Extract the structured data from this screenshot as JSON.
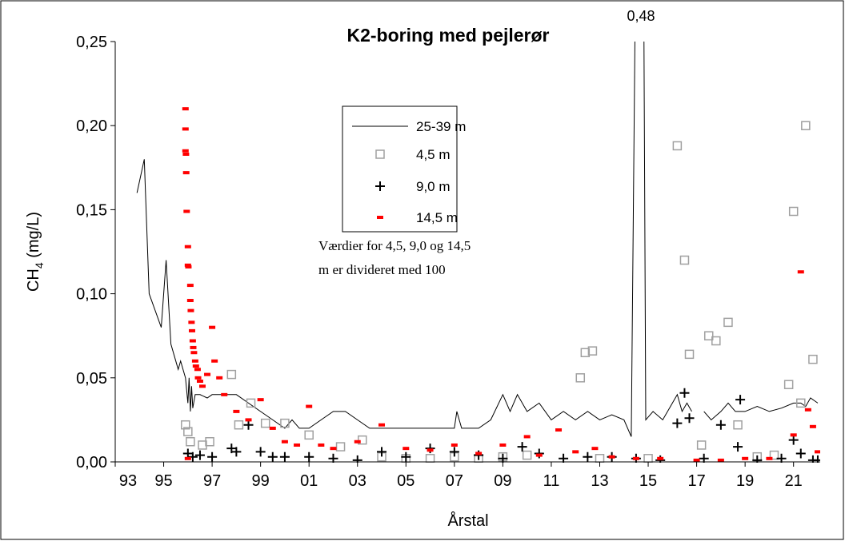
{
  "chart_data": {
    "type": "line-scatter",
    "title": "K2-boring med pejlerør",
    "xlabel": "Årstal",
    "ylabel": [
      "CH",
      "4",
      " (mg/L)"
    ],
    "annotation": {
      "text": "0,48",
      "x": 2014.7
    },
    "note_lines": [
      "Værdier for 4,5, 9,0 og 14,5",
      "m er divideret med 100"
    ],
    "xlim": [
      1993,
      2022.1
    ],
    "ylim": [
      0,
      0.25
    ],
    "xticks": [
      {
        "value": 1993,
        "label": "93"
      },
      {
        "value": 1995,
        "label": "95"
      },
      {
        "value": 1997,
        "label": "97"
      },
      {
        "value": 1999,
        "label": "99"
      },
      {
        "value": 2001,
        "label": "01"
      },
      {
        "value": 2003,
        "label": "03"
      },
      {
        "value": 2005,
        "label": "05"
      },
      {
        "value": 2007,
        "label": "07"
      },
      {
        "value": 2009,
        "label": "09"
      },
      {
        "value": 2011,
        "label": "11"
      },
      {
        "value": 2013,
        "label": "13"
      },
      {
        "value": 2015,
        "label": "15"
      },
      {
        "value": 2017,
        "label": "17"
      },
      {
        "value": 2019,
        "label": "19"
      },
      {
        "value": 2021,
        "label": "21"
      }
    ],
    "yticks": [
      {
        "value": 0,
        "label": "0,00"
      },
      {
        "value": 0.05,
        "label": "0,05"
      },
      {
        "value": 0.1,
        "label": "0,10"
      },
      {
        "value": 0.15,
        "label": "0,15"
      },
      {
        "value": 0.2,
        "label": "0,20"
      },
      {
        "value": 0.25,
        "label": "0,25"
      }
    ],
    "series": [
      {
        "name": "25-39 m",
        "color": "#000000",
        "marker": "line",
        "x": [
          1993.9,
          1994.2,
          1994.4,
          1994.9,
          1995.1,
          1995.3,
          1995.5,
          1995.6,
          1995.7,
          1995.9,
          1996.0,
          1996.05,
          1996.1,
          1996.15,
          1996.2,
          1996.3,
          1996.5,
          1996.8,
          1997,
          1997.5,
          1998,
          1998.5,
          1999,
          1999.5,
          2000,
          2000.3,
          2000.6,
          2001,
          2001.5,
          2002,
          2002.5,
          2003,
          2003.5,
          2004,
          2004.5,
          2005,
          2006,
          2007,
          2007.1,
          2007.3,
          2008,
          2008.5,
          2009,
          2009.3,
          2009.6,
          2010,
          2010.5,
          2011,
          2011.5,
          2012,
          2012.5,
          2013,
          2013.5,
          2014,
          2014.3,
          2014.6,
          2014.75,
          2014.9,
          2015.2,
          2015.6,
          2016,
          2016.2,
          2016.4,
          2016.6,
          2016.8,
          2017.0,
          2017.3,
          2017.6,
          2018,
          2018.3,
          2018.6,
          2019,
          2019.5,
          2020,
          2020.5,
          2021,
          2021.3,
          2021.5,
          2021.7,
          2022
        ],
        "values": [
          0.16,
          0.18,
          0.1,
          0.08,
          0.12,
          0.07,
          0.06,
          0.055,
          0.06,
          0.05,
          0.035,
          0.05,
          0.03,
          0.045,
          0.032,
          0.04,
          0.04,
          0.038,
          0.04,
          0.04,
          0.04,
          0.035,
          0.03,
          0.025,
          0.02,
          0.025,
          0.02,
          0.02,
          0.025,
          0.03,
          0.03,
          0.025,
          0.02,
          0.02,
          0.02,
          0.02,
          0.02,
          0.02,
          0.03,
          0.02,
          0.02,
          0.025,
          0.04,
          0.03,
          0.04,
          0.03,
          0.035,
          0.025,
          0.03,
          0.025,
          0.03,
          0.025,
          0.028,
          0.025,
          0.015,
          0.48,
          0.48,
          0.025,
          0.03,
          0.025,
          0.035,
          0.04,
          0.03,
          0.035,
          0.03,
          null,
          0.03,
          0.025,
          0.03,
          0.035,
          0.03,
          0.03,
          0.033,
          0.03,
          0.032,
          0.035,
          0.035,
          0.033,
          0.038,
          0.035
        ]
      },
      {
        "name": "4,5 m",
        "color": "#a0a0a0",
        "marker": "square",
        "x": [
          1995.9,
          1996.0,
          1996.1,
          1996.6,
          1996.9,
          1997.8,
          1998.1,
          1998.6,
          1999.2,
          2000,
          2001,
          2002.3,
          2003.2,
          2004,
          2005,
          2006,
          2007,
          2008,
          2009,
          2010,
          2012.2,
          2012.4,
          2012.7,
          2013,
          2015,
          2016.2,
          2016.5,
          2016.7,
          2017.2,
          2017.5,
          2017.8,
          2018.3,
          2018.7,
          2019.5,
          2020.2,
          2020.8,
          2021,
          2021.3,
          2021.5,
          2021.8
        ],
        "values": [
          0.022,
          0.018,
          0.012,
          0.01,
          0.012,
          0.052,
          0.022,
          0.035,
          0.023,
          0.023,
          0.016,
          0.009,
          0.013,
          0.003,
          0.002,
          0.002,
          0.003,
          0.002,
          0.003,
          0.004,
          0.05,
          0.065,
          0.066,
          0.002,
          0.002,
          0.188,
          0.12,
          0.064,
          0.01,
          0.075,
          0.072,
          0.083,
          0.022,
          0.003,
          0.004,
          0.046,
          0.149,
          0.035,
          0.2,
          0.061
        ]
      },
      {
        "name": "9,0 m",
        "color": "#000000",
        "marker": "plus",
        "x": [
          1996,
          1996.2,
          1996.5,
          1997,
          1997.8,
          1998,
          1998.5,
          1999,
          1999.5,
          2000,
          2001,
          2002,
          2003,
          2004,
          2005,
          2006,
          2007,
          2008,
          2009,
          2009.8,
          2010.5,
          2011.5,
          2012.5,
          2013.5,
          2014.5,
          2015.5,
          2016.2,
          2016.5,
          2016.7,
          2017.3,
          2018,
          2018.7,
          2018.8,
          2019.5,
          2020.5,
          2021,
          2021.3,
          2021.8,
          2022
        ],
        "values": [
          0.005,
          0.003,
          0.004,
          0.003,
          0.008,
          0.006,
          0.022,
          0.006,
          0.003,
          0.003,
          0.003,
          0.002,
          0.001,
          0.006,
          0.003,
          0.008,
          0.006,
          0.004,
          0.002,
          0.009,
          0.005,
          0.002,
          0.003,
          0.003,
          0.002,
          0.001,
          0.023,
          0.041,
          0.026,
          0.002,
          0.022,
          0.009,
          0.037,
          0.001,
          0.002,
          0.013,
          0.005,
          0.001,
          0.001
        ]
      },
      {
        "name": "14,5 m",
        "color": "#ff0000",
        "marker": "dash",
        "x": [
          1995.9,
          1995.9,
          1995.9,
          1995.92,
          1995.93,
          1995.95,
          1996.0,
          1996.0,
          1996.02,
          1996.1,
          1996.1,
          1996.12,
          1996.15,
          1996.17,
          1996.2,
          1996.22,
          1996.25,
          1996.3,
          1996.33,
          1996.4,
          1996.42,
          1996.5,
          1996.6,
          1996.8,
          1997,
          1997.1,
          1997.3,
          1997.5,
          1998,
          1998.5,
          1999,
          1999.5,
          2000,
          2000.5,
          2001,
          2001.5,
          2002,
          2003,
          2004,
          2005,
          2006,
          2007,
          2008,
          2009,
          2010,
          2010.5,
          2011.3,
          2012,
          2012.8,
          2013.5,
          2014.5,
          2015.5,
          2017,
          2018,
          2019,
          2020,
          2021,
          2021.3,
          2021.6,
          2021.8,
          2022,
          1996.0
        ],
        "values": [
          0.21,
          0.198,
          0.185,
          0.183,
          0.172,
          0.149,
          0.128,
          0.117,
          0.116,
          0.105,
          0.096,
          0.09,
          0.083,
          0.078,
          0.072,
          0.068,
          0.065,
          0.06,
          0.057,
          0.055,
          0.05,
          0.048,
          0.045,
          0.052,
          0.08,
          0.06,
          0.05,
          0.04,
          0.03,
          0.025,
          0.037,
          0.02,
          0.012,
          0.01,
          0.033,
          0.01,
          0.008,
          0.012,
          0.022,
          0.008,
          0.007,
          0.01,
          0.005,
          0.01,
          0.015,
          0.004,
          0.019,
          0.006,
          0.008,
          0.003,
          0.002,
          0.002,
          0.001,
          0.001,
          0.002,
          0.002,
          0.016,
          0.113,
          0.031,
          0.021,
          0.006,
          0.002
        ]
      }
    ]
  }
}
